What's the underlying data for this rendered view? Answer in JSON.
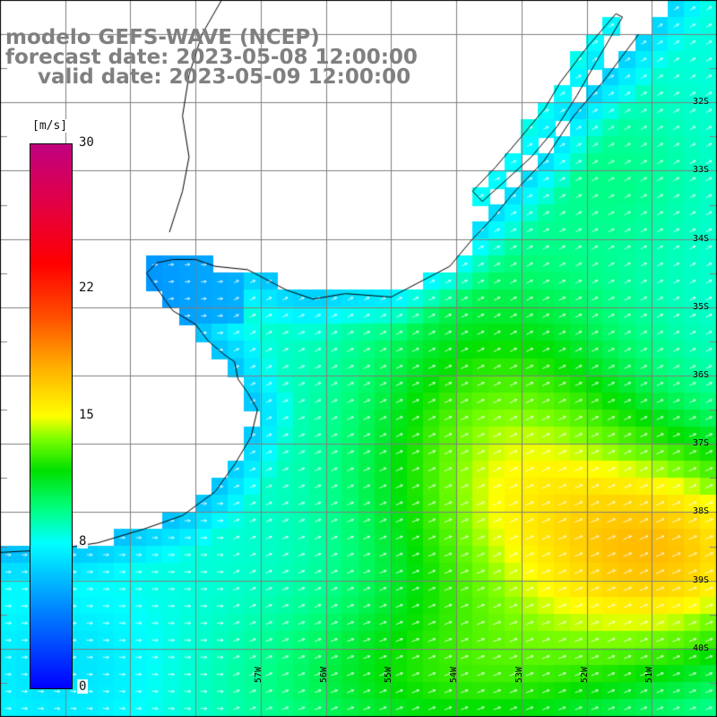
{
  "title": {
    "line1": "modelo GEFS-WAVE (NCEP)",
    "line2": "forecast date: 2023-05-08 12:00:00",
    "line3": "valid date: 2023-05-09 12:00:00"
  },
  "colorbar": {
    "unit": "[m/s]",
    "ticks": [
      "30",
      "22",
      "15",
      "8",
      "0"
    ],
    "tick_values": [
      30,
      22,
      15,
      8,
      0
    ],
    "range": [
      0,
      30
    ]
  },
  "map": {
    "lat_labels": [
      "32S",
      "33S",
      "34S",
      "35S",
      "36S",
      "37S",
      "38S",
      "39S",
      "40S"
    ],
    "lat_values": [
      -32,
      -33,
      -34,
      -35,
      -36,
      -37,
      -38,
      -39,
      -40
    ],
    "lon_labels": [
      "57W",
      "56W",
      "55W",
      "54W",
      "53W",
      "52W",
      "51W"
    ],
    "lon_values": [
      -57,
      -56,
      -55,
      -54,
      -53,
      -52,
      -51
    ],
    "extent_lon": [
      -61.0,
      -50.0
    ],
    "extent_lat": [
      -41.0,
      -30.5
    ],
    "colors": {
      "land": "#ffffff",
      "coastline": "#000000",
      "grid": "#7f7f7f",
      "arrow": "#ffffff"
    }
  }
}
